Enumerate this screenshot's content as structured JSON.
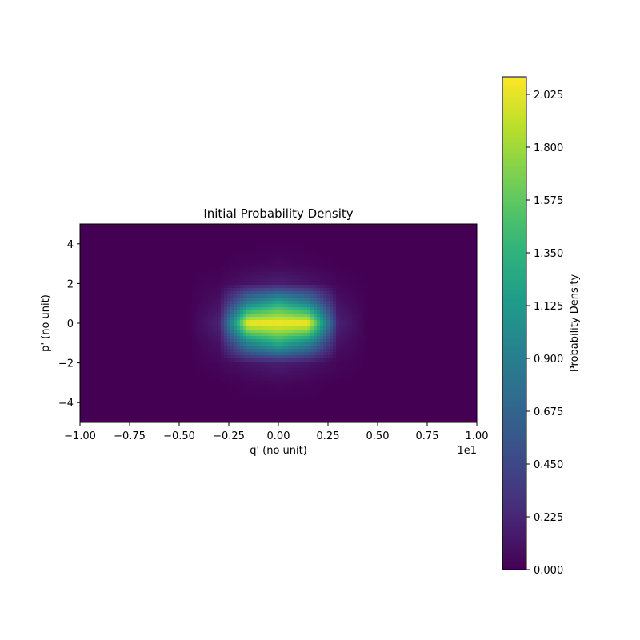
{
  "chart_data": {
    "type": "heatmap",
    "title": "Initial Probability Density",
    "xlabel": "q' (no unit)",
    "ylabel": "p' (no unit)",
    "x_offset_label": "1e1",
    "xlim": [
      -1.0,
      1.0
    ],
    "ylim": [
      -5,
      5
    ],
    "x_ticks": [
      "−1.00",
      "−0.75",
      "−0.50",
      "−0.25",
      "0.00",
      "0.25",
      "0.50",
      "0.75",
      "1.00"
    ],
    "x_tick_values": [
      -1.0,
      -0.75,
      -0.5,
      -0.25,
      0.0,
      0.25,
      0.5,
      0.75,
      1.0
    ],
    "y_ticks": [
      "−4",
      "−2",
      "0",
      "2",
      "4"
    ],
    "y_tick_values": [
      -4,
      -2,
      0,
      2,
      4
    ],
    "colormap": "viridis",
    "colorbar": {
      "label": "Probability Density",
      "range": [
        0.0,
        2.1
      ],
      "ticks": [
        "0.000",
        "0.225",
        "0.450",
        "0.675",
        "0.900",
        "1.125",
        "1.350",
        "1.575",
        "1.800",
        "2.025"
      ],
      "tick_values": [
        0.0,
        0.225,
        0.45,
        0.675,
        0.9,
        1.125,
        1.35,
        1.575,
        1.8,
        2.025
      ]
    },
    "density": {
      "x": [
        -0.6,
        -0.45,
        -0.3,
        -0.15,
        0.0,
        0.15,
        0.3,
        0.45,
        0.6
      ],
      "y": [
        -4,
        -3,
        -2,
        -1,
        0,
        1,
        2,
        3,
        4
      ],
      "z": [
        [
          0.0,
          0.0,
          0.0,
          0.0,
          0.0,
          0.0,
          0.0,
          0.0,
          0.0
        ],
        [
          0.0,
          0.0,
          0.0,
          0.02,
          0.04,
          0.02,
          0.0,
          0.0,
          0.0
        ],
        [
          0.0,
          0.0,
          0.03,
          0.12,
          0.18,
          0.12,
          0.03,
          0.0,
          0.0
        ],
        [
          0.0,
          0.0,
          0.1,
          0.95,
          1.3,
          0.95,
          0.1,
          0.0,
          0.0
        ],
        [
          0.0,
          0.0,
          0.2,
          2.1,
          2.1,
          2.1,
          0.2,
          0.0,
          0.0
        ],
        [
          0.0,
          0.0,
          0.1,
          0.95,
          1.3,
          0.95,
          0.1,
          0.0,
          0.0
        ],
        [
          0.0,
          0.0,
          0.03,
          0.12,
          0.18,
          0.12,
          0.03,
          0.0,
          0.0
        ],
        [
          0.0,
          0.0,
          0.0,
          0.02,
          0.04,
          0.02,
          0.0,
          0.0,
          0.0
        ],
        [
          0.0,
          0.0,
          0.0,
          0.0,
          0.0,
          0.0,
          0.0,
          0.0,
          0.0
        ]
      ]
    }
  }
}
